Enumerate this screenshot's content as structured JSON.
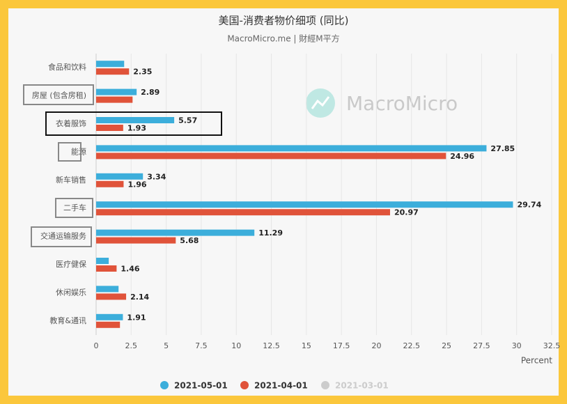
{
  "chart_data": {
    "type": "hbar",
    "title": "美国-消费者物价细项 (同比)",
    "subtitle": "MacroMicro.me | 財經M平方",
    "watermark": "MacroMicro",
    "x_axis_label": "Percent",
    "categories": [
      "食品和饮料",
      "房屋 (包含房租)",
      "衣着服饰",
      "能源",
      "新车销售",
      "二手车",
      "交通运输服务",
      "医疗健保",
      "休闲娱乐",
      "教育&通讯"
    ],
    "series": [
      {
        "name": "2021-05-01",
        "color": "#3caedb",
        "values": [
          2.0,
          2.89,
          5.57,
          27.85,
          3.34,
          29.74,
          11.29,
          0.9,
          1.6,
          1.91
        ],
        "value_labels": [
          null,
          "2.89",
          "5.57",
          "27.85",
          "3.34",
          "29.74",
          "11.29",
          null,
          null,
          "1.91"
        ]
      },
      {
        "name": "2021-04-01",
        "color": "#e0533a",
        "values": [
          2.35,
          2.6,
          1.93,
          24.96,
          1.96,
          20.97,
          5.68,
          1.46,
          2.14,
          1.7
        ],
        "value_labels": [
          "2.35",
          null,
          "1.93",
          "24.96",
          "1.96",
          "20.97",
          "5.68",
          "1.46",
          "2.14",
          null
        ]
      },
      {
        "name": "2021-03-01",
        "color": "#cccccc",
        "hidden": true,
        "values": [
          null,
          null,
          null,
          null,
          null,
          null,
          null,
          null,
          null,
          null
        ]
      }
    ],
    "xlim": [
      0,
      32.5
    ],
    "xticks": [
      0,
      2.5,
      5,
      7.5,
      10,
      12.5,
      15,
      17.5,
      20,
      22.5,
      25,
      27.5,
      30,
      32.5
    ],
    "grid": true
  }
}
